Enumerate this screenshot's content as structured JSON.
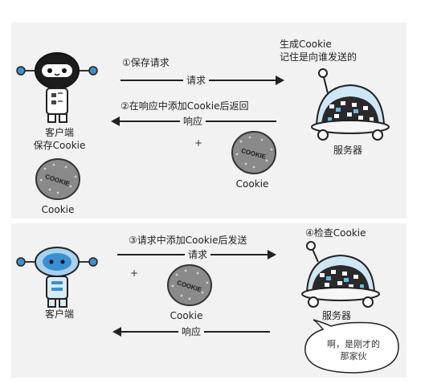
{
  "top": {
    "step1": "①保存请求",
    "step2": "②在响应中添加Cookie后返回",
    "request_label": "请求",
    "response_label": "响应",
    "client_label_1": "客户端",
    "client_label_2": "保存Cookie",
    "server_note_1": "生成Cookie",
    "server_note_2": "记住是向谁发送的",
    "server_label": "服务器",
    "cookie_label_1": "Cookie",
    "cookie_label_2": "Cookie",
    "cookie_text": "COOKIE",
    "plus": "+"
  },
  "bottom": {
    "step3": "③请求中添加Cookie后发送",
    "step4": "④检查Cookie",
    "request_label": "请求",
    "response_label": "响应",
    "client_label": "客户端",
    "server_label": "服务器",
    "cookie_label": "Cookie",
    "cookie_text": "COOKIE",
    "plus": "+",
    "bubble_line_1": "啊，是刚才的",
    "bubble_line_2": "那家伙"
  },
  "colors": {
    "panel": "#f2f2f2",
    "robot_head_dark": "#1c1c1c",
    "robot_head_blue": "#6cb7e3",
    "robot_ears": "#3a8fd1",
    "server_dome": "#cfe6f5",
    "server_body": "#2a2a2a",
    "cookie": "#8a8a8a"
  }
}
